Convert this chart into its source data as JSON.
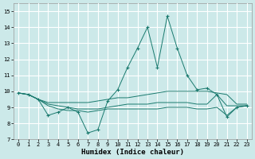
{
  "xlabel": "Humidex (Indice chaleur)",
  "xlim": [
    -0.5,
    23.5
  ],
  "ylim": [
    7,
    15.5
  ],
  "yticks": [
    7,
    8,
    9,
    10,
    11,
    12,
    13,
    14,
    15
  ],
  "xticks": [
    0,
    1,
    2,
    3,
    4,
    5,
    6,
    7,
    8,
    9,
    10,
    11,
    12,
    13,
    14,
    15,
    16,
    17,
    18,
    19,
    20,
    21,
    22,
    23
  ],
  "bg_color": "#cce9e9",
  "grid_color": "#ffffff",
  "line_color": "#1a7a6e",
  "line_main": {
    "x": [
      0,
      1,
      2,
      3,
      4,
      5,
      6,
      7,
      8,
      9,
      10,
      11,
      12,
      13,
      14,
      15,
      16,
      17,
      18,
      19,
      20,
      21,
      22,
      23
    ],
    "y": [
      9.9,
      9.8,
      9.5,
      8.5,
      8.7,
      9.0,
      8.7,
      7.4,
      7.6,
      9.4,
      10.1,
      11.5,
      12.7,
      14.0,
      11.5,
      14.7,
      12.7,
      11.0,
      10.1,
      10.2,
      9.8,
      8.4,
      9.0,
      9.1
    ]
  },
  "line_flat1": {
    "x": [
      0,
      1,
      2,
      3,
      4,
      5,
      6,
      7,
      8,
      9,
      10,
      11,
      12,
      13,
      14,
      15,
      16,
      17,
      18,
      19,
      20,
      21,
      22,
      23
    ],
    "y": [
      9.9,
      9.8,
      9.5,
      9.3,
      9.3,
      9.3,
      9.3,
      9.3,
      9.4,
      9.5,
      9.6,
      9.6,
      9.7,
      9.8,
      9.9,
      10.0,
      10.0,
      10.0,
      10.0,
      10.0,
      9.9,
      9.8,
      9.2,
      9.2
    ]
  },
  "line_flat2": {
    "x": [
      0,
      1,
      2,
      3,
      4,
      5,
      6,
      7,
      8,
      9,
      10,
      11,
      12,
      13,
      14,
      15,
      16,
      17,
      18,
      19,
      20,
      21,
      22,
      23
    ],
    "y": [
      9.9,
      9.8,
      9.5,
      9.2,
      9.1,
      9.0,
      8.9,
      8.9,
      8.9,
      9.0,
      9.1,
      9.2,
      9.2,
      9.2,
      9.3,
      9.3,
      9.3,
      9.3,
      9.2,
      9.2,
      9.8,
      9.1,
      9.1,
      9.1
    ]
  },
  "line_flat3": {
    "x": [
      0,
      1,
      2,
      3,
      4,
      5,
      6,
      7,
      8,
      9,
      10,
      11,
      12,
      13,
      14,
      15,
      16,
      17,
      18,
      19,
      20,
      21,
      22,
      23
    ],
    "y": [
      9.9,
      9.8,
      9.5,
      9.1,
      8.9,
      8.8,
      8.8,
      8.7,
      8.8,
      8.9,
      8.9,
      8.9,
      8.9,
      8.9,
      8.9,
      9.0,
      9.0,
      9.0,
      8.9,
      8.9,
      9.0,
      8.5,
      9.0,
      9.1
    ]
  }
}
